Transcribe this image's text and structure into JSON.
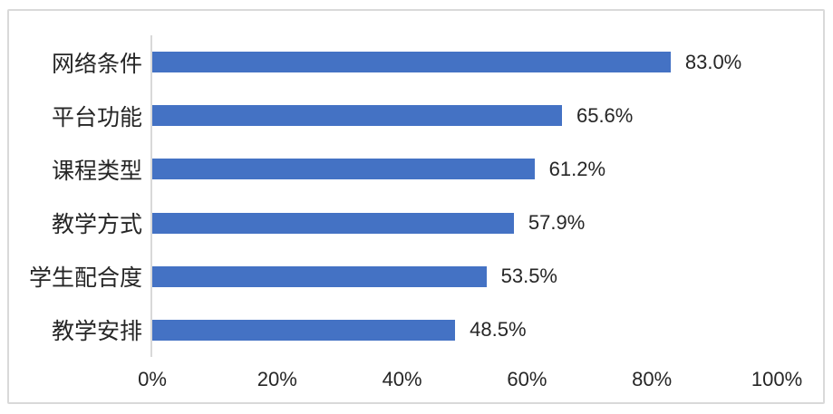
{
  "chart_data": {
    "type": "bar",
    "orientation": "horizontal",
    "title": "",
    "categories": [
      "网络条件",
      "平台功能",
      "课程类型",
      "教学方式",
      "学生配合度",
      "教学安排"
    ],
    "values": [
      83.0,
      65.6,
      61.2,
      57.9,
      53.5,
      48.5
    ],
    "value_labels": [
      "83.0%",
      "65.6%",
      "61.2%",
      "57.9%",
      "53.5%",
      "48.5%"
    ],
    "x_ticks": [
      "0%",
      "20%",
      "40%",
      "60%",
      "80%",
      "100%"
    ],
    "x_tick_values": [
      0,
      20,
      40,
      60,
      80,
      100
    ],
    "xlim": [
      0,
      100
    ],
    "grid": false,
    "legend": false,
    "bar_color": "#4472C4",
    "axis_line_color": "#D9D9D9",
    "frame_border_color": "#D9D9D9",
    "text_color": "#262626"
  }
}
